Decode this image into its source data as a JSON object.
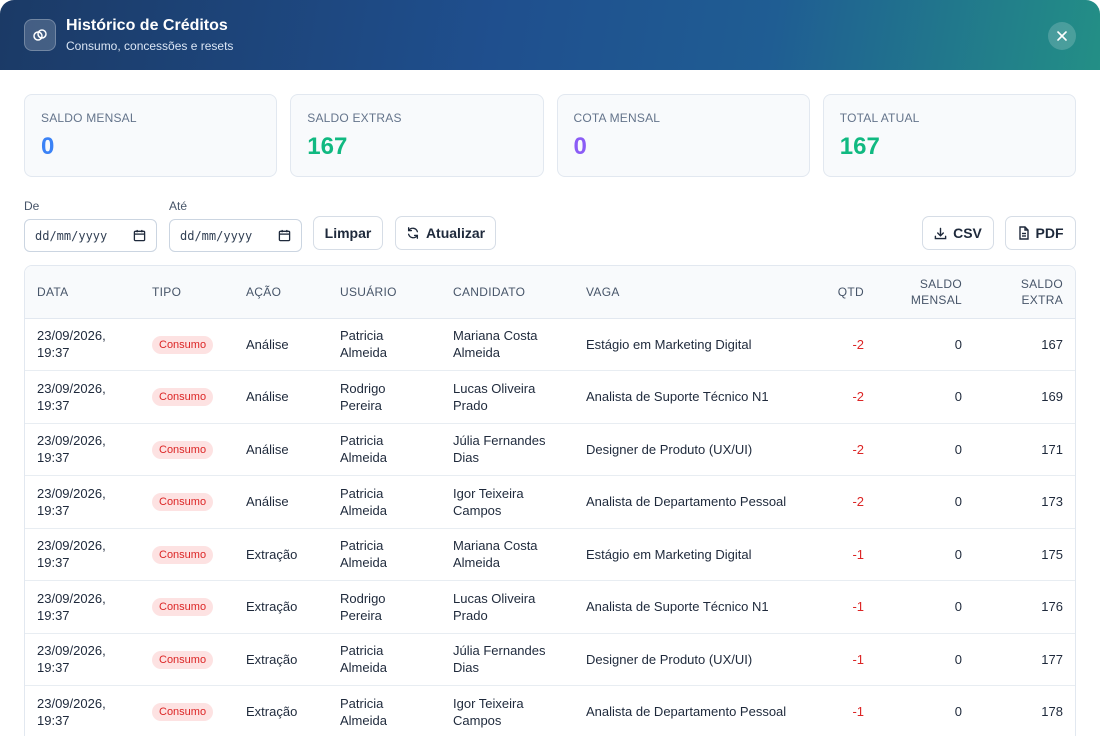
{
  "header": {
    "title": "Histórico de Créditos",
    "subtitle": "Consumo, concessões e resets",
    "icon": "link-coin-icon",
    "close_icon": "close-icon"
  },
  "stats": [
    {
      "label": "SALDO MENSAL",
      "value": "0",
      "color": "#3b82f6"
    },
    {
      "label": "SALDO EXTRAS",
      "value": "167",
      "color": "#10b981"
    },
    {
      "label": "COTA MENSAL",
      "value": "0",
      "color": "#8b5cf6"
    },
    {
      "label": "TOTAL ATUAL",
      "value": "167",
      "color": "#10b981"
    }
  ],
  "filters": {
    "from_label": "De",
    "from_placeholder": "dd/mm/yyyy",
    "to_label": "Até",
    "to_placeholder": "dd/mm/yyyy",
    "clear_label": "Limpar",
    "refresh_label": "Atualizar",
    "csv_label": "CSV",
    "pdf_label": "PDF"
  },
  "table": {
    "columns": [
      "DATA",
      "TIPO",
      "AÇÃO",
      "USUÁRIO",
      "CANDIDATO",
      "VAGA",
      "QTD",
      "SALDO MENSAL",
      "SALDO EXTRA"
    ],
    "rows": [
      {
        "date": "23/09/2026, 19:37",
        "type": "Consumo",
        "action": "Análise",
        "user": "Patricia Almeida",
        "candidate": "Mariana Costa Almeida",
        "job": "Estágio em Marketing Digital",
        "qty": "-2",
        "monthly": "0",
        "extra": "167"
      },
      {
        "date": "23/09/2026, 19:37",
        "type": "Consumo",
        "action": "Análise",
        "user": "Rodrigo Pereira",
        "candidate": "Lucas Oliveira Prado",
        "job": "Analista de Suporte Técnico N1",
        "qty": "-2",
        "monthly": "0",
        "extra": "169"
      },
      {
        "date": "23/09/2026, 19:37",
        "type": "Consumo",
        "action": "Análise",
        "user": "Patricia Almeida",
        "candidate": "Júlia Fernandes Dias",
        "job": "Designer de Produto (UX/UI)",
        "qty": "-2",
        "monthly": "0",
        "extra": "171"
      },
      {
        "date": "23/09/2026, 19:37",
        "type": "Consumo",
        "action": "Análise",
        "user": "Patricia Almeida",
        "candidate": "Igor Teixeira Campos",
        "job": "Analista de Departamento Pessoal",
        "qty": "-2",
        "monthly": "0",
        "extra": "173"
      },
      {
        "date": "23/09/2026, 19:37",
        "type": "Consumo",
        "action": "Extração",
        "user": "Patricia Almeida",
        "candidate": "Mariana Costa Almeida",
        "job": "Estágio em Marketing Digital",
        "qty": "-1",
        "monthly": "0",
        "extra": "175"
      },
      {
        "date": "23/09/2026, 19:37",
        "type": "Consumo",
        "action": "Extração",
        "user": "Rodrigo Pereira",
        "candidate": "Lucas Oliveira Prado",
        "job": "Analista de Suporte Técnico N1",
        "qty": "-1",
        "monthly": "0",
        "extra": "176"
      },
      {
        "date": "23/09/2026, 19:37",
        "type": "Consumo",
        "action": "Extração",
        "user": "Patricia Almeida",
        "candidate": "Júlia Fernandes Dias",
        "job": "Designer de Produto (UX/UI)",
        "qty": "-1",
        "monthly": "0",
        "extra": "177"
      },
      {
        "date": "23/09/2026, 19:37",
        "type": "Consumo",
        "action": "Extração",
        "user": "Patricia Almeida",
        "candidate": "Igor Teixeira Campos",
        "job": "Analista de Departamento Pessoal",
        "qty": "-1",
        "monthly": "0",
        "extra": "178"
      }
    ]
  }
}
